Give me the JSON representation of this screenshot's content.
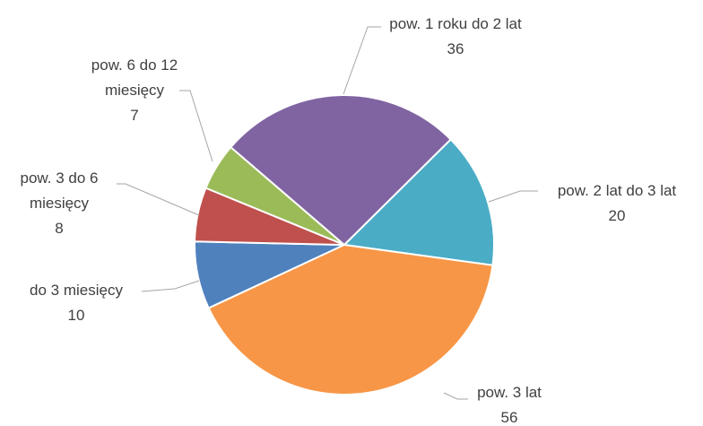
{
  "chart_data": {
    "type": "pie",
    "categories": [
      "do 3 miesięcy",
      "pow. 3 do 6 miesięcy",
      "pow. 6 do 12 miesięcy",
      "pow. 1 roku do 2 lat",
      "pow. 2 lat do 3 lat",
      "pow. 3 lat"
    ],
    "values": [
      10,
      8,
      7,
      36,
      20,
      56
    ],
    "colors": [
      "#4f81bd",
      "#c0504d",
      "#9bbb59",
      "#8064a2",
      "#4bacc6",
      "#f79646"
    ]
  }
}
